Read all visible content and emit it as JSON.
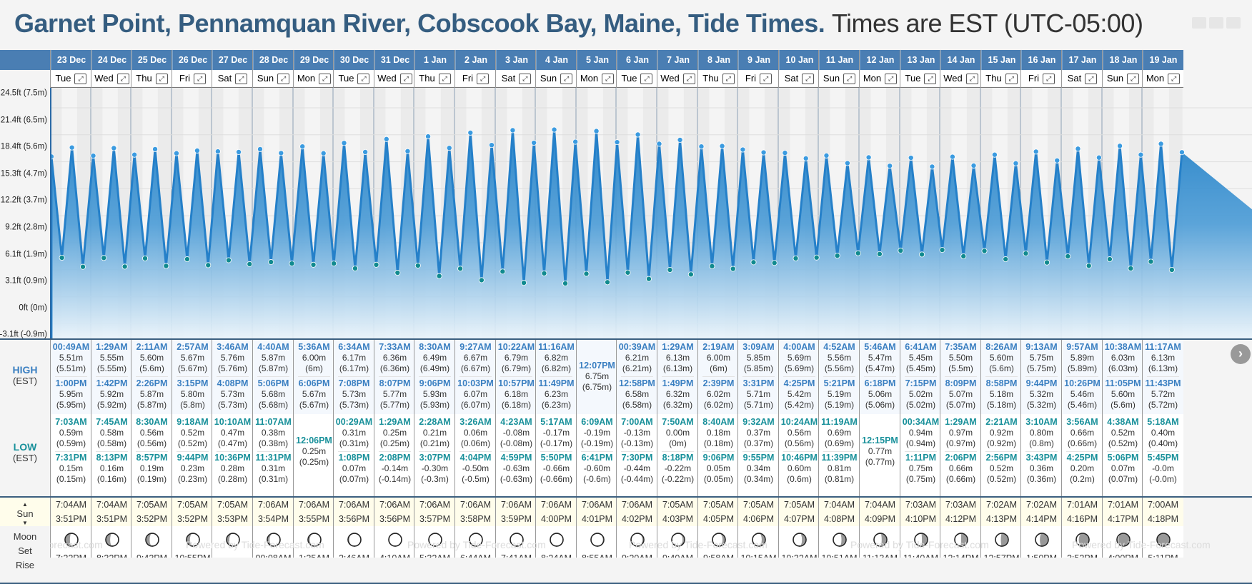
{
  "header": {
    "title": "Garnet Point, Pennamquan River, Cobscook Bay, Maine, Tide Times.",
    "timezone_note": "Times are EST (UTC-05:00)"
  },
  "labels": {
    "high": "HIGH",
    "low": "LOW",
    "est": "(EST)",
    "sun": "Sun",
    "moon": "Moon",
    "set": "Set",
    "rise": "Rise",
    "watermark": "Powered by Tide-Forecast.com",
    "expand_icon": "⤢",
    "next_icon": "›"
  },
  "y_axis": [
    "24.5ft (7.5m)",
    "21.4ft (6.5m)",
    "18.4ft (5.6m)",
    "15.3ft (4.7m)",
    "12.2ft (3.7m)",
    "9.2ft (2.8m)",
    "6.1ft (1.9m)",
    "3.1ft (0.9m)",
    "0ft (0m)",
    "-3.1ft (-0.9m)"
  ],
  "colors": {
    "header_blue": "#4a7eb3",
    "high_text": "#3a7fc1",
    "low_text": "#18909a",
    "title": "#355d80",
    "sun_bg": "#fffdeb"
  },
  "days": [
    {
      "date": "23 Dec",
      "wd": "Tue",
      "highs": [
        [
          "00:49AM",
          "5.51m",
          "(5.51m)"
        ],
        [
          "1:00PM",
          "5.95m",
          "(5.95m)"
        ]
      ],
      "lows": [
        [
          "7:03AM",
          "0.59m",
          "(0.59m)"
        ],
        [
          "7:31PM",
          "0.15m",
          "(0.15m)"
        ]
      ],
      "sunrise": "7:04AM",
      "sunset": "3:51PM",
      "moon_set": "7:22PM",
      "moon_rise": "9:43AM",
      "phase": 0.62
    },
    {
      "date": "24 Dec",
      "wd": "Wed",
      "highs": [
        [
          "1:29AM",
          "5.55m",
          "(5.55m)"
        ],
        [
          "1:42PM",
          "5.92m",
          "(5.92m)"
        ]
      ],
      "lows": [
        [
          "7:45AM",
          "0.58m",
          "(0.58m)"
        ],
        [
          "8:13PM",
          "0.16m",
          "(0.16m)"
        ]
      ],
      "sunrise": "7:04AM",
      "sunset": "3:51PM",
      "moon_set": "8:32PM",
      "moon_rise": "10:05AM",
      "phase": 0.66
    },
    {
      "date": "25 Dec",
      "wd": "Thu",
      "highs": [
        [
          "2:11AM",
          "5.60m",
          "(5.6m)"
        ],
        [
          "2:26PM",
          "5.87m",
          "(5.87m)"
        ]
      ],
      "lows": [
        [
          "8:30AM",
          "0.56m",
          "(0.56m)"
        ],
        [
          "8:57PM",
          "0.19m",
          "(0.19m)"
        ]
      ],
      "sunrise": "7:05AM",
      "sunset": "3:52PM",
      "moon_set": "9:43PM",
      "moon_rise": "10:25AM",
      "phase": 0.7
    },
    {
      "date": "26 Dec",
      "wd": "Fri",
      "highs": [
        [
          "2:57AM",
          "5.67m",
          "(5.67m)"
        ],
        [
          "3:15PM",
          "5.80m",
          "(5.8m)"
        ]
      ],
      "lows": [
        [
          "9:18AM",
          "0.52m",
          "(0.52m)"
        ],
        [
          "9:44PM",
          "0.23m",
          "(0.23m)"
        ]
      ],
      "sunrise": "7:05AM",
      "sunset": "3:52PM",
      "moon_set": "10:55PM",
      "moon_rise": "10:44AM",
      "phase": 0.74
    },
    {
      "date": "27 Dec",
      "wd": "Sat",
      "highs": [
        [
          "3:46AM",
          "5.76m",
          "(5.76m)"
        ],
        [
          "4:08PM",
          "5.73m",
          "(5.73m)"
        ]
      ],
      "lows": [
        [
          "10:10AM",
          "0.47m",
          "(0.47m)"
        ],
        [
          "10:36PM",
          "0.28m",
          "(0.28m)"
        ]
      ],
      "sunrise": "7:05AM",
      "sunset": "3:53PM",
      "moon_set": "",
      "moon_rise": "11:02AM",
      "phase": 0.78
    },
    {
      "date": "28 Dec",
      "wd": "Sun",
      "highs": [
        [
          "4:40AM",
          "5.87m",
          "(5.87m)"
        ],
        [
          "5:06PM",
          "5.68m",
          "(5.68m)"
        ]
      ],
      "lows": [
        [
          "11:07AM",
          "0.38m",
          "(0.38m)"
        ],
        [
          "11:31PM",
          "0.31m",
          "(0.31m)"
        ]
      ],
      "sunrise": "7:06AM",
      "sunset": "3:54PM",
      "moon_set": "00:08AM",
      "moon_rise": "11:22AM",
      "phase": 0.82
    },
    {
      "date": "29 Dec",
      "wd": "Mon",
      "highs": [
        [
          "5:36AM",
          "6.00m",
          "(6m)"
        ],
        [
          "6:06PM",
          "5.67m",
          "(5.67m)"
        ]
      ],
      "lows": [
        [
          "12:06PM",
          "0.25m",
          "(0.25m)"
        ]
      ],
      "sunrise": "7:06AM",
      "sunset": "3:55PM",
      "moon_set": "1:25AM",
      "moon_rise": "11:45AM",
      "phase": 0.86
    },
    {
      "date": "30 Dec",
      "wd": "Tue",
      "highs": [
        [
          "6:34AM",
          "6.17m",
          "(6.17m)"
        ],
        [
          "7:08PM",
          "5.73m",
          "(5.73m)"
        ]
      ],
      "lows": [
        [
          "00:29AM",
          "0.31m",
          "(0.31m)"
        ],
        [
          "1:08PM",
          "0.07m",
          "(0.07m)"
        ]
      ],
      "sunrise": "7:06AM",
      "sunset": "3:56PM",
      "moon_set": "2:46AM",
      "moon_rise": "12:14PM",
      "phase": 0.9
    },
    {
      "date": "31 Dec",
      "wd": "Wed",
      "highs": [
        [
          "7:33AM",
          "6.36m",
          "(6.36m)"
        ],
        [
          "8:07PM",
          "5.77m",
          "(5.77m)"
        ]
      ],
      "lows": [
        [
          "1:29AM",
          "0.25m",
          "(0.25m)"
        ],
        [
          "2:08PM",
          "-0.14m",
          "(-0.14m)"
        ]
      ],
      "sunrise": "7:06AM",
      "sunset": "3:56PM",
      "moon_set": "4:10AM",
      "moon_rise": "12:52PM",
      "phase": 0.94
    },
    {
      "date": "1 Jan",
      "wd": "Thu",
      "highs": [
        [
          "8:30AM",
          "6.49m",
          "(6.49m)"
        ],
        [
          "9:06PM",
          "5.93m",
          "(5.93m)"
        ]
      ],
      "lows": [
        [
          "2:28AM",
          "0.21m",
          "(0.21m)"
        ],
        [
          "3:07PM",
          "-0.30m",
          "(-0.3m)"
        ]
      ],
      "sunrise": "7:06AM",
      "sunset": "3:57PM",
      "moon_set": "5:32AM",
      "moon_rise": "1:44PM",
      "phase": 0.98
    },
    {
      "date": "2 Jan",
      "wd": "Fri",
      "highs": [
        [
          "9:27AM",
          "6.67m",
          "(6.67m)"
        ],
        [
          "10:03PM",
          "6.07m",
          "(6.07m)"
        ]
      ],
      "lows": [
        [
          "3:26AM",
          "0.06m",
          "(0.06m)"
        ],
        [
          "4:04PM",
          "-0.50m",
          "(-0.5m)"
        ]
      ],
      "sunrise": "7:06AM",
      "sunset": "3:58PM",
      "moon_set": "6:44AM",
      "moon_rise": "2:50PM",
      "phase": 1.0
    },
    {
      "date": "3 Jan",
      "wd": "Sat",
      "highs": [
        [
          "10:22AM",
          "6.79m",
          "(6.79m)"
        ],
        [
          "10:57PM",
          "6.18m",
          "(6.18m)"
        ]
      ],
      "lows": [
        [
          "4:23AM",
          "-0.08m",
          "(-0.08m)"
        ],
        [
          "4:59PM",
          "-0.63m",
          "(-0.63m)"
        ]
      ],
      "sunrise": "7:06AM",
      "sunset": "3:59PM",
      "moon_set": "7:41AM",
      "moon_rise": "4:08PM",
      "phase": 1.0
    },
    {
      "date": "4 Jan",
      "wd": "Sun",
      "highs": [
        [
          "11:16AM",
          "6.82m",
          "(6.82m)"
        ],
        [
          "11:49PM",
          "6.23m",
          "(6.23m)"
        ]
      ],
      "lows": [
        [
          "5:17AM",
          "-0.17m",
          "(-0.17m)"
        ],
        [
          "5:50PM",
          "-0.66m",
          "(-0.66m)"
        ]
      ],
      "sunrise": "7:06AM",
      "sunset": "4:00PM",
      "moon_set": "8:24AM",
      "moon_rise": "5:31PM",
      "phase": 1.04
    },
    {
      "date": "5 Jan",
      "wd": "Mon",
      "highs": [
        [
          "12:07PM",
          "6.75m",
          "(6.75m)"
        ]
      ],
      "lows": [
        [
          "6:09AM",
          "-0.19m",
          "(-0.19m)"
        ],
        [
          "6:41PM",
          "-0.60m",
          "(-0.6m)"
        ]
      ],
      "sunrise": "7:06AM",
      "sunset": "4:01PM",
      "moon_set": "8:55AM",
      "moon_rise": "6:51PM",
      "phase": 1.08
    },
    {
      "date": "6 Jan",
      "wd": "Tue",
      "highs": [
        [
          "00:39AM",
          "6.21m",
          "(6.21m)"
        ],
        [
          "12:58PM",
          "6.58m",
          "(6.58m)"
        ]
      ],
      "lows": [
        [
          "7:00AM",
          "-0.13m",
          "(-0.13m)"
        ],
        [
          "7:30PM",
          "-0.44m",
          "(-0.44m)"
        ]
      ],
      "sunrise": "7:06AM",
      "sunset": "4:02PM",
      "moon_set": "9:20AM",
      "moon_rise": "8:07PM",
      "phase": 1.12
    },
    {
      "date": "7 Jan",
      "wd": "Wed",
      "highs": [
        [
          "1:29AM",
          "6.13m",
          "(6.13m)"
        ],
        [
          "1:49PM",
          "6.32m",
          "(6.32m)"
        ]
      ],
      "lows": [
        [
          "7:50AM",
          "0.00m",
          "(0m)"
        ],
        [
          "8:18PM",
          "-0.22m",
          "(-0.22m)"
        ]
      ],
      "sunrise": "7:05AM",
      "sunset": "4:03PM",
      "moon_set": "9:40AM",
      "moon_rise": "9:19PM",
      "phase": 1.16
    },
    {
      "date": "8 Jan",
      "wd": "Thu",
      "highs": [
        [
          "2:19AM",
          "6.00m",
          "(6m)"
        ],
        [
          "2:39PM",
          "6.02m",
          "(6.02m)"
        ]
      ],
      "lows": [
        [
          "8:40AM",
          "0.18m",
          "(0.18m)"
        ],
        [
          "9:06PM",
          "0.05m",
          "(0.05m)"
        ]
      ],
      "sunrise": "7:05AM",
      "sunset": "4:05PM",
      "moon_set": "9:58AM",
      "moon_rise": "10:27PM",
      "phase": 1.22
    },
    {
      "date": "9 Jan",
      "wd": "Fri",
      "highs": [
        [
          "3:09AM",
          "5.85m",
          "(5.85m)"
        ],
        [
          "3:31PM",
          "5.71m",
          "(5.71m)"
        ]
      ],
      "lows": [
        [
          "9:32AM",
          "0.37m",
          "(0.37m)"
        ],
        [
          "9:55PM",
          "0.34m",
          "(0.34m)"
        ]
      ],
      "sunrise": "7:05AM",
      "sunset": "4:06PM",
      "moon_set": "10:15AM",
      "moon_rise": "11:33PM",
      "phase": 1.28
    },
    {
      "date": "10 Jan",
      "wd": "Sat",
      "highs": [
        [
          "4:00AM",
          "5.69m",
          "(5.69m)"
        ],
        [
          "4:25PM",
          "5.42m",
          "(5.42m)"
        ]
      ],
      "lows": [
        [
          "10:24AM",
          "0.56m",
          "(0.56m)"
        ],
        [
          "10:46PM",
          "0.60m",
          "(0.6m)"
        ]
      ],
      "sunrise": "7:05AM",
      "sunset": "4:07PM",
      "moon_set": "10:32AM",
      "moon_rise": "",
      "phase": 1.32
    },
    {
      "date": "11 Jan",
      "wd": "Sun",
      "highs": [
        [
          "4:52AM",
          "5.56m",
          "(5.56m)"
        ],
        [
          "5:21PM",
          "5.19m",
          "(5.19m)"
        ]
      ],
      "lows": [
        [
          "11:19AM",
          "0.69m",
          "(0.69m)"
        ],
        [
          "11:39PM",
          "0.81m",
          "(0.81m)"
        ]
      ],
      "sunrise": "7:04AM",
      "sunset": "4:08PM",
      "moon_set": "10:51AM",
      "moon_rise": "00:39AM",
      "phase": 1.36
    },
    {
      "date": "12 Jan",
      "wd": "Mon",
      "highs": [
        [
          "5:46AM",
          "5.47m",
          "(5.47m)"
        ],
        [
          "6:18PM",
          "5.06m",
          "(5.06m)"
        ]
      ],
      "lows": [
        [
          "12:15PM",
          "0.77m",
          "(0.77m)"
        ]
      ],
      "sunrise": "7:04AM",
      "sunset": "4:09PM",
      "moon_set": "11:13AM",
      "moon_rise": "1:45AM",
      "phase": 1.4
    },
    {
      "date": "13 Jan",
      "wd": "Tue",
      "highs": [
        [
          "6:41AM",
          "5.45m",
          "(5.45m)"
        ],
        [
          "7:15PM",
          "5.02m",
          "(5.02m)"
        ]
      ],
      "lows": [
        [
          "00:34AM",
          "0.94m",
          "(0.94m)"
        ],
        [
          "1:11PM",
          "0.75m",
          "(0.75m)"
        ]
      ],
      "sunrise": "7:03AM",
      "sunset": "4:10PM",
      "moon_set": "11:40AM",
      "moon_rise": "2:52AM",
      "phase": 1.44
    },
    {
      "date": "14 Jan",
      "wd": "Wed",
      "highs": [
        [
          "7:35AM",
          "5.50m",
          "(5.5m)"
        ],
        [
          "8:09PM",
          "5.07m",
          "(5.07m)"
        ]
      ],
      "lows": [
        [
          "1:29AM",
          "0.97m",
          "(0.97m)"
        ],
        [
          "2:06PM",
          "0.66m",
          "(0.66m)"
        ]
      ],
      "sunrise": "7:03AM",
      "sunset": "4:12PM",
      "moon_set": "12:14PM",
      "moon_rise": "3:57AM",
      "phase": 1.5
    },
    {
      "date": "15 Jan",
      "wd": "Thu",
      "highs": [
        [
          "8:26AM",
          "5.60m",
          "(5.6m)"
        ],
        [
          "8:58PM",
          "5.18m",
          "(5.18m)"
        ]
      ],
      "lows": [
        [
          "2:21AM",
          "0.92m",
          "(0.92m)"
        ],
        [
          "2:56PM",
          "0.52m",
          "(0.52m)"
        ]
      ],
      "sunrise": "7:02AM",
      "sunset": "4:13PM",
      "moon_set": "12:57PM",
      "moon_rise": "4:58AM",
      "phase": 1.58
    },
    {
      "date": "16 Jan",
      "wd": "Fri",
      "highs": [
        [
          "9:13AM",
          "5.75m",
          "(5.75m)"
        ],
        [
          "9:44PM",
          "5.32m",
          "(5.32m)"
        ]
      ],
      "lows": [
        [
          "3:10AM",
          "0.80m",
          "(0.8m)"
        ],
        [
          "3:43PM",
          "0.36m",
          "(0.36m)"
        ]
      ],
      "sunrise": "7:02AM",
      "sunset": "4:14PM",
      "moon_set": "1:50PM",
      "moon_rise": "5:53AM",
      "phase": 1.66
    },
    {
      "date": "17 Jan",
      "wd": "Sat",
      "highs": [
        [
          "9:57AM",
          "5.89m",
          "(5.89m)"
        ],
        [
          "10:26PM",
          "5.46m",
          "(5.46m)"
        ]
      ],
      "lows": [
        [
          "3:56AM",
          "0.66m",
          "(0.66m)"
        ],
        [
          "4:25PM",
          "0.20m",
          "(0.2m)"
        ]
      ],
      "sunrise": "7:01AM",
      "sunset": "4:16PM",
      "moon_set": "2:52PM",
      "moon_rise": "6:39AM",
      "phase": 1.8
    },
    {
      "date": "18 Jan",
      "wd": "Sun",
      "highs": [
        [
          "10:38AM",
          "6.03m",
          "(6.03m)"
        ],
        [
          "11:05PM",
          "5.60m",
          "(5.6m)"
        ]
      ],
      "lows": [
        [
          "4:38AM",
          "0.52m",
          "(0.52m)"
        ],
        [
          "5:06PM",
          "0.07m",
          "(0.07m)"
        ]
      ],
      "sunrise": "7:01AM",
      "sunset": "4:17PM",
      "moon_set": "4:00PM",
      "moon_rise": "7:16AM",
      "phase": 1.9
    },
    {
      "date": "19 Jan",
      "wd": "Mon",
      "highs": [
        [
          "11:17AM",
          "6.13m",
          "(6.13m)"
        ],
        [
          "11:43PM",
          "5.72m",
          "(5.72m)"
        ]
      ],
      "lows": [
        [
          "5:18AM",
          "0.40m",
          "(0.40m)"
        ],
        [
          "5:45PM",
          "-0.0m",
          "(-0.0m)"
        ]
      ],
      "sunrise": "7:00AM",
      "sunset": "4:18PM",
      "moon_set": "5:11PM",
      "moon_rise": "7:46AM",
      "phase": 2.0
    }
  ]
}
